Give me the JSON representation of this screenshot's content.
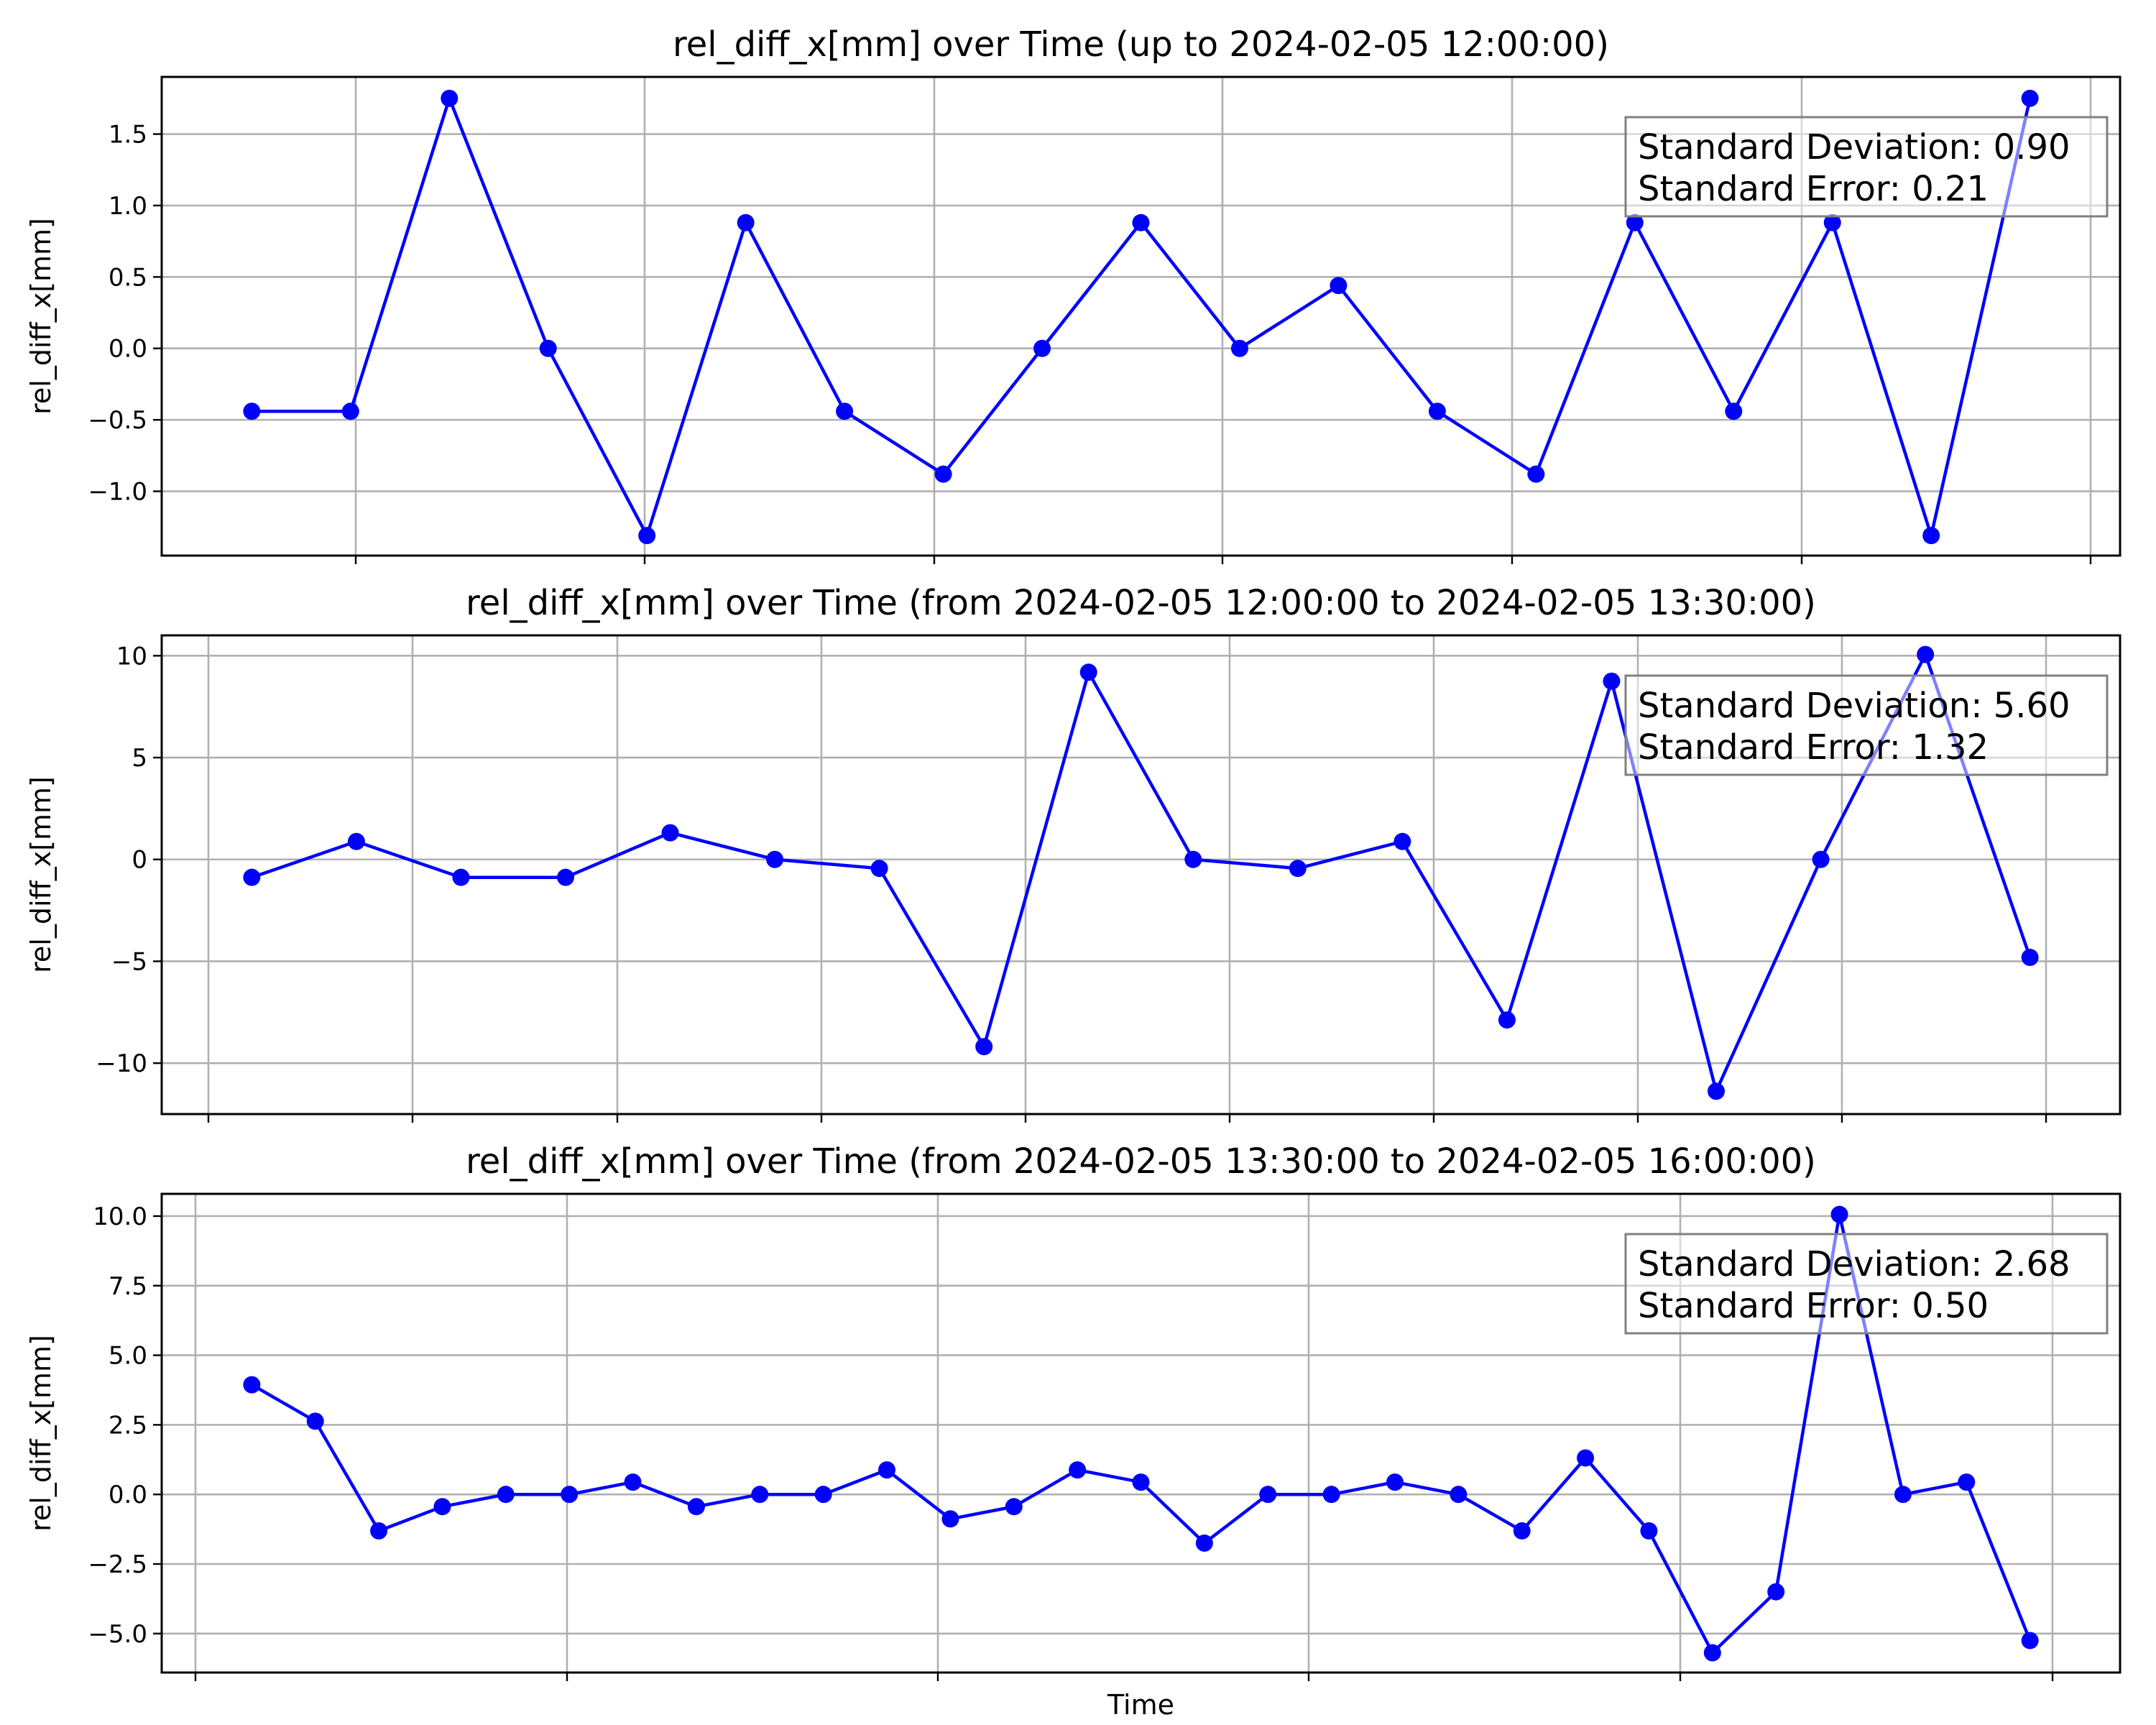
{
  "colors": {
    "series": "#0000ff"
  },
  "chart_data": [
    {
      "type": "line",
      "title": "rel_diff_x[mm] over Time (up to 2024-02-05 12:00:00)",
      "xlabel": "",
      "ylabel": "rel_diff_x[mm]",
      "ylim": [
        -1.45,
        1.9
      ],
      "yticks": [
        -1.0,
        -0.5,
        0.0,
        0.5,
        1.0,
        1.5
      ],
      "ytick_labels": [
        "−1.0",
        "−0.5",
        "0.0",
        "0.5",
        "1.0",
        "1.5"
      ],
      "grid": true,
      "marker": "circle",
      "series": [
        {
          "values": [
            -0.44,
            -0.44,
            1.75,
            0.0,
            -1.31,
            0.88,
            -0.44,
            -0.88,
            0.0,
            0.88,
            0.0,
            0.44,
            -0.44,
            -0.88,
            0.88,
            -0.44,
            0.88,
            -1.31,
            1.75
          ]
        }
      ],
      "stats": {
        "std_label": "Standard Deviation: 0.90",
        "se_label": "Standard Error: 0.21"
      }
    },
    {
      "type": "line",
      "title": "rel_diff_x[mm] over Time (from 2024-02-05 12:00:00 to 2024-02-05 13:30:00)",
      "xlabel": "",
      "ylabel": "rel_diff_x[mm]",
      "ylim": [
        -12.5,
        11.0
      ],
      "yticks": [
        -10,
        -5,
        0,
        5,
        10
      ],
      "ytick_labels": [
        "−10",
        "−5",
        "0",
        "5",
        "10"
      ],
      "grid": true,
      "marker": "circle",
      "series": [
        {
          "values": [
            -0.88,
            0.88,
            -0.88,
            -0.88,
            1.31,
            0.0,
            -0.44,
            -9.19,
            9.19,
            0.0,
            -0.44,
            0.88,
            -7.88,
            8.75,
            -11.38,
            0.0,
            10.06,
            -4.81
          ]
        }
      ],
      "stats": {
        "std_label": "Standard Deviation: 5.60",
        "se_label": "Standard Error: 1.32"
      }
    },
    {
      "type": "line",
      "title": "rel_diff_x[mm] over Time (from 2024-02-05 13:30:00 to 2024-02-05 16:00:00)",
      "xlabel": "Time",
      "ylabel": "rel_diff_x[mm]",
      "ylim": [
        -6.4,
        10.8
      ],
      "yticks": [
        -5.0,
        -2.5,
        0.0,
        2.5,
        5.0,
        7.5,
        10.0
      ],
      "ytick_labels": [
        "−5.0",
        "−2.5",
        "0.0",
        "2.5",
        "5.0",
        "7.5",
        "10.0"
      ],
      "grid": true,
      "marker": "circle",
      "series": [
        {
          "values": [
            3.94,
            2.63,
            -1.31,
            -0.44,
            0.0,
            0.0,
            0.44,
            -0.44,
            0.0,
            0.0,
            0.88,
            -0.88,
            -0.44,
            0.88,
            0.44,
            -1.75,
            0.0,
            0.0,
            0.44,
            0.0,
            -1.31,
            1.31,
            -1.31,
            -5.69,
            -3.5,
            10.06,
            0.0,
            0.44,
            -5.25
          ]
        }
      ],
      "stats": {
        "std_label": "Standard Deviation: 2.68",
        "se_label": "Standard Error: 0.50"
      }
    }
  ]
}
